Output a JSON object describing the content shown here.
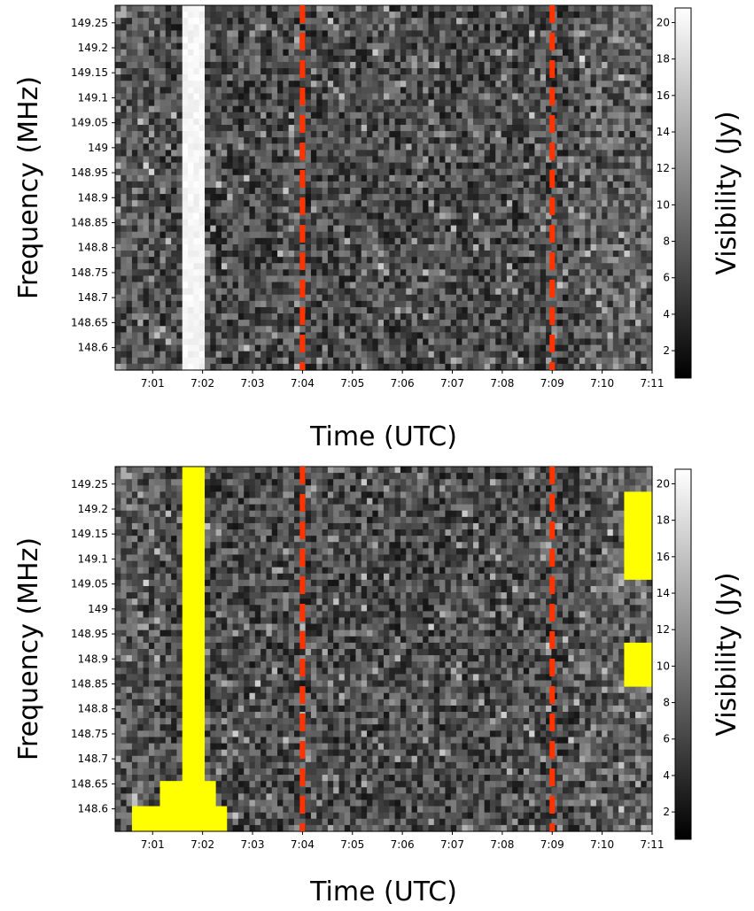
{
  "chart_data": [
    {
      "type": "heatmap",
      "panel": "top",
      "xlabel": "Time (UTC)",
      "ylabel": "Frequency (MHz)",
      "colorbar_label": "Visibility (Jy)",
      "colormap": "grayscale",
      "x_ticks": [
        "7:01",
        "7:02",
        "7:03",
        "7:04",
        "7:05",
        "7:06",
        "7:07",
        "7:08",
        "7:09",
        "7:10",
        "7:11"
      ],
      "y_ticks": [
        "149.25",
        "149.2",
        "149.15",
        "149.1",
        "149.05",
        "149",
        "148.95",
        "148.9",
        "148.85",
        "148.8",
        "148.75",
        "148.7",
        "148.65",
        "148.6"
      ],
      "colorbar_ticks": [
        "20",
        "18",
        "16",
        "14",
        "12",
        "10",
        "8",
        "6",
        "4",
        "2"
      ],
      "colorbar_range": [
        0.5,
        20.8
      ],
      "x_range_minutes": [
        0.25,
        11.0
      ],
      "y_range_mhz": [
        148.555,
        149.285
      ],
      "markers": [
        {
          "type": "vertical-dashed-line",
          "time": "7:04",
          "color": "#ff3300"
        },
        {
          "type": "vertical-dashed-line",
          "time": "7:09",
          "color": "#ff3300"
        }
      ],
      "bright_band": {
        "time_start_minutes": 1.55,
        "time_end_minutes": 2.05,
        "value_jy": 20
      }
    },
    {
      "type": "heatmap",
      "panel": "bottom",
      "xlabel": "Time (UTC)",
      "ylabel": "Frequency (MHz)",
      "colorbar_label": "Visibility (Jy)",
      "colormap": "grayscale",
      "highlight_color": "#ffff00",
      "x_ticks": [
        "7:01",
        "7:02",
        "7:03",
        "7:04",
        "7:05",
        "7:06",
        "7:07",
        "7:08",
        "7:09",
        "7:10",
        "7:11"
      ],
      "y_ticks": [
        "149.25",
        "149.2",
        "149.15",
        "149.1",
        "149.05",
        "149",
        "148.95",
        "148.9",
        "148.85",
        "148.8",
        "148.75",
        "148.7",
        "148.65",
        "148.6"
      ],
      "colorbar_ticks": [
        "20",
        "18",
        "16",
        "14",
        "12",
        "10",
        "8",
        "6",
        "4",
        "2"
      ],
      "colorbar_range": [
        0.5,
        20.8
      ],
      "x_range_minutes": [
        0.25,
        11.0
      ],
      "y_range_mhz": [
        148.555,
        149.285
      ],
      "markers": [
        {
          "type": "vertical-dashed-line",
          "time": "7:04",
          "color": "#ff3300"
        },
        {
          "type": "vertical-dashed-line",
          "time": "7:09",
          "color": "#ff3300"
        }
      ]
    }
  ]
}
